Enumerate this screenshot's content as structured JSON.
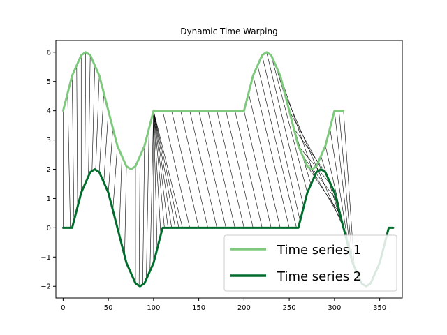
{
  "chart_data": {
    "type": "line",
    "title": "Dynamic Time Warping",
    "xlabel": "",
    "ylabel": "",
    "xlim": [
      -8,
      375
    ],
    "ylim": [
      -2.4,
      6.4
    ],
    "xticks": [
      0,
      50,
      100,
      150,
      200,
      250,
      300,
      350
    ],
    "xtick_labels": [
      "0",
      "50",
      "100",
      "150",
      "200",
      "250",
      "300",
      "350"
    ],
    "yticks": [
      -2,
      -1,
      0,
      1,
      2,
      3,
      4,
      5,
      6
    ],
    "ytick_labels": [
      "−2",
      "−1",
      "0",
      "1",
      "2",
      "3",
      "4",
      "5",
      "6"
    ],
    "grid": false,
    "legend": {
      "position": "lower-right",
      "entries": [
        "Time series 1",
        "Time series 2"
      ]
    },
    "series": [
      {
        "name": "Time series 1",
        "color": "#7fc97f",
        "x": [
          0,
          10,
          20,
          25,
          30,
          40,
          50,
          60,
          70,
          75,
          80,
          90,
          100,
          120,
          140,
          160,
          180,
          200,
          210,
          220,
          225,
          230,
          240,
          250,
          260,
          270,
          275,
          280,
          290,
          300,
          310
        ],
        "values": [
          4.0,
          5.2,
          5.9,
          6.0,
          5.9,
          5.2,
          4.0,
          2.8,
          2.1,
          2.0,
          2.1,
          2.8,
          4.0,
          4.0,
          4.0,
          4.0,
          4.0,
          4.0,
          5.2,
          5.9,
          6.0,
          5.9,
          5.2,
          4.0,
          2.8,
          2.1,
          2.0,
          2.1,
          2.8,
          4.0,
          4.0
        ]
      },
      {
        "name": "Time series 2",
        "color": "#006d2c",
        "x": [
          0,
          10,
          20,
          30,
          35,
          40,
          50,
          60,
          70,
          80,
          85,
          90,
          100,
          110,
          150,
          200,
          260,
          270,
          280,
          285,
          290,
          300,
          310,
          320,
          330,
          335,
          340,
          350,
          360,
          365
        ],
        "values": [
          0.0,
          0.0,
          1.2,
          1.9,
          2.0,
          1.9,
          1.2,
          0.0,
          -1.2,
          -1.9,
          -2.0,
          -1.9,
          -1.2,
          0.0,
          0.0,
          0.0,
          0.0,
          1.2,
          1.9,
          2.0,
          1.9,
          1.2,
          0.0,
          -1.2,
          -1.9,
          -2.0,
          -1.9,
          -1.2,
          0.0,
          0.0
        ]
      }
    ],
    "warping_links": {
      "description_color": "#000000",
      "pairs_x": [
        [
          0,
          0
        ],
        [
          5,
          8
        ],
        [
          10,
          12
        ],
        [
          15,
          16
        ],
        [
          20,
          20
        ],
        [
          25,
          24
        ],
        [
          30,
          28
        ],
        [
          35,
          32
        ],
        [
          40,
          36
        ],
        [
          45,
          40
        ],
        [
          50,
          45
        ],
        [
          55,
          50
        ],
        [
          60,
          55
        ],
        [
          65,
          62
        ],
        [
          70,
          68
        ],
        [
          75,
          75
        ],
        [
          80,
          80
        ],
        [
          85,
          84
        ],
        [
          90,
          88
        ],
        [
          95,
          92
        ],
        [
          100,
          96
        ],
        [
          100,
          100
        ],
        [
          100,
          104
        ],
        [
          100,
          108
        ],
        [
          100,
          112
        ],
        [
          100,
          116
        ],
        [
          100,
          120
        ],
        [
          100,
          124
        ],
        [
          100,
          128
        ],
        [
          100,
          132
        ],
        [
          110,
          140
        ],
        [
          120,
          150
        ],
        [
          130,
          160
        ],
        [
          140,
          170
        ],
        [
          150,
          180
        ],
        [
          160,
          190
        ],
        [
          170,
          200
        ],
        [
          180,
          210
        ],
        [
          190,
          220
        ],
        [
          200,
          230
        ],
        [
          205,
          240
        ],
        [
          210,
          250
        ],
        [
          215,
          258
        ],
        [
          220,
          262
        ],
        [
          225,
          266
        ],
        [
          230,
          270
        ],
        [
          235,
          274
        ],
        [
          240,
          278
        ],
        [
          245,
          282
        ],
        [
          250,
          286
        ],
        [
          255,
          290
        ],
        [
          260,
          296
        ],
        [
          265,
          302
        ],
        [
          270,
          306
        ],
        [
          275,
          308
        ],
        [
          280,
          310
        ],
        [
          285,
          312
        ],
        [
          290,
          314
        ],
        [
          295,
          316
        ],
        [
          300,
          318
        ],
        [
          305,
          320
        ],
        [
          310,
          322
        ]
      ]
    }
  }
}
